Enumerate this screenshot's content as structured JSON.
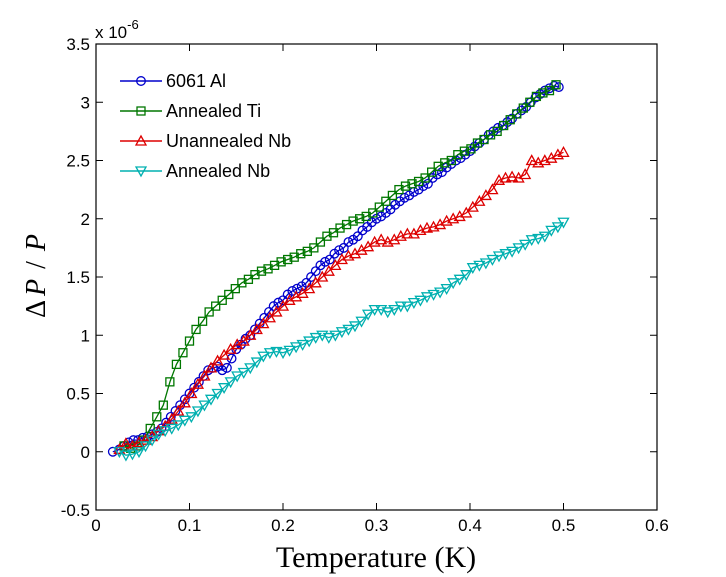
{
  "chart_data": {
    "type": "line",
    "title": "",
    "xlabel": "Temperature (K)",
    "ylabel": "ΔP / P",
    "ylabel_parts": {
      "delta": "Δ",
      "numerator": "P",
      "slash": "/",
      "denominator": "P"
    },
    "y_multiplier": {
      "prefix": "x 10",
      "exponent": "-6"
    },
    "xlim": [
      0,
      0.6
    ],
    "ylim": [
      -0.5,
      3.5
    ],
    "xticks": [
      0,
      0.1,
      0.2,
      0.3,
      0.4,
      0.5,
      0.6
    ],
    "xtick_labels": [
      "0",
      "0.1",
      "0.2",
      "0.3",
      "0.4",
      "0.5",
      "0.6"
    ],
    "yticks": [
      -0.5,
      0,
      0.5,
      1,
      1.5,
      2,
      2.5,
      3,
      3.5
    ],
    "ytick_labels": [
      "-0.5",
      "0",
      "0.5",
      "1",
      "1.5",
      "2",
      "2.5",
      "3",
      "3.5"
    ],
    "grid": false,
    "legend_position": "top-left",
    "series": [
      {
        "name": "6061 Al",
        "color": "#0000cc",
        "marker": "circle",
        "points": [
          [
            0.018,
            0.0
          ],
          [
            0.025,
            0.02
          ],
          [
            0.03,
            0.05
          ],
          [
            0.035,
            0.08
          ],
          [
            0.04,
            0.1
          ],
          [
            0.045,
            0.1
          ],
          [
            0.05,
            0.12
          ],
          [
            0.055,
            0.13
          ],
          [
            0.06,
            0.15
          ],
          [
            0.065,
            0.17
          ],
          [
            0.07,
            0.2
          ],
          [
            0.075,
            0.25
          ],
          [
            0.08,
            0.3
          ],
          [
            0.085,
            0.35
          ],
          [
            0.09,
            0.4
          ],
          [
            0.095,
            0.45
          ],
          [
            0.1,
            0.5
          ],
          [
            0.105,
            0.55
          ],
          [
            0.11,
            0.6
          ],
          [
            0.115,
            0.65
          ],
          [
            0.12,
            0.7
          ],
          [
            0.125,
            0.72
          ],
          [
            0.13,
            0.73
          ],
          [
            0.135,
            0.7
          ],
          [
            0.14,
            0.72
          ],
          [
            0.145,
            0.8
          ],
          [
            0.15,
            0.88
          ],
          [
            0.155,
            0.92
          ],
          [
            0.16,
            0.97
          ],
          [
            0.165,
            1.0
          ],
          [
            0.17,
            1.05
          ],
          [
            0.175,
            1.1
          ],
          [
            0.18,
            1.15
          ],
          [
            0.185,
            1.2
          ],
          [
            0.19,
            1.25
          ],
          [
            0.195,
            1.28
          ],
          [
            0.2,
            1.3
          ],
          [
            0.205,
            1.35
          ],
          [
            0.21,
            1.38
          ],
          [
            0.215,
            1.4
          ],
          [
            0.22,
            1.42
          ],
          [
            0.225,
            1.45
          ],
          [
            0.23,
            1.5
          ],
          [
            0.235,
            1.55
          ],
          [
            0.24,
            1.6
          ],
          [
            0.245,
            1.63
          ],
          [
            0.25,
            1.65
          ],
          [
            0.255,
            1.7
          ],
          [
            0.26,
            1.73
          ],
          [
            0.265,
            1.75
          ],
          [
            0.27,
            1.8
          ],
          [
            0.275,
            1.82
          ],
          [
            0.28,
            1.85
          ],
          [
            0.285,
            1.9
          ],
          [
            0.29,
            1.93
          ],
          [
            0.295,
            1.97
          ],
          [
            0.3,
            2.0
          ],
          [
            0.305,
            2.02
          ],
          [
            0.31,
            2.05
          ],
          [
            0.315,
            2.08
          ],
          [
            0.32,
            2.12
          ],
          [
            0.325,
            2.15
          ],
          [
            0.33,
            2.18
          ],
          [
            0.335,
            2.2
          ],
          [
            0.34,
            2.23
          ],
          [
            0.345,
            2.25
          ],
          [
            0.35,
            2.28
          ],
          [
            0.355,
            2.3
          ],
          [
            0.36,
            2.35
          ],
          [
            0.365,
            2.38
          ],
          [
            0.37,
            2.4
          ],
          [
            0.375,
            2.44
          ],
          [
            0.38,
            2.47
          ],
          [
            0.385,
            2.5
          ],
          [
            0.39,
            2.52
          ],
          [
            0.395,
            2.55
          ],
          [
            0.4,
            2.58
          ],
          [
            0.405,
            2.62
          ],
          [
            0.41,
            2.65
          ],
          [
            0.415,
            2.68
          ],
          [
            0.42,
            2.72
          ],
          [
            0.425,
            2.75
          ],
          [
            0.43,
            2.78
          ],
          [
            0.435,
            2.8
          ],
          [
            0.44,
            2.83
          ],
          [
            0.445,
            2.86
          ],
          [
            0.45,
            2.9
          ],
          [
            0.455,
            2.93
          ],
          [
            0.46,
            2.96
          ],
          [
            0.465,
            3.0
          ],
          [
            0.47,
            3.04
          ],
          [
            0.475,
            3.07
          ],
          [
            0.48,
            3.1
          ],
          [
            0.485,
            3.12
          ],
          [
            0.49,
            3.14
          ],
          [
            0.495,
            3.13
          ]
        ]
      },
      {
        "name": "Annealed Ti",
        "color": "#007700",
        "marker": "square",
        "points": [
          [
            0.03,
            0.05
          ],
          [
            0.037,
            0.03
          ],
          [
            0.044,
            0.05
          ],
          [
            0.051,
            0.1
          ],
          [
            0.058,
            0.2
          ],
          [
            0.065,
            0.3
          ],
          [
            0.072,
            0.4
          ],
          [
            0.079,
            0.6
          ],
          [
            0.086,
            0.75
          ],
          [
            0.093,
            0.85
          ],
          [
            0.1,
            0.95
          ],
          [
            0.107,
            1.05
          ],
          [
            0.114,
            1.12
          ],
          [
            0.121,
            1.2
          ],
          [
            0.128,
            1.25
          ],
          [
            0.135,
            1.3
          ],
          [
            0.142,
            1.35
          ],
          [
            0.149,
            1.4
          ],
          [
            0.156,
            1.45
          ],
          [
            0.163,
            1.48
          ],
          [
            0.17,
            1.52
          ],
          [
            0.177,
            1.55
          ],
          [
            0.184,
            1.57
          ],
          [
            0.191,
            1.6
          ],
          [
            0.198,
            1.63
          ],
          [
            0.205,
            1.65
          ],
          [
            0.212,
            1.67
          ],
          [
            0.219,
            1.7
          ],
          [
            0.226,
            1.72
          ],
          [
            0.233,
            1.75
          ],
          [
            0.24,
            1.8
          ],
          [
            0.247,
            1.85
          ],
          [
            0.254,
            1.88
          ],
          [
            0.261,
            1.92
          ],
          [
            0.268,
            1.95
          ],
          [
            0.275,
            1.98
          ],
          [
            0.282,
            2.0
          ],
          [
            0.289,
            2.02
          ],
          [
            0.296,
            2.05
          ],
          [
            0.303,
            2.1
          ],
          [
            0.31,
            2.15
          ],
          [
            0.317,
            2.2
          ],
          [
            0.324,
            2.25
          ],
          [
            0.331,
            2.28
          ],
          [
            0.338,
            2.3
          ],
          [
            0.345,
            2.32
          ],
          [
            0.352,
            2.35
          ],
          [
            0.359,
            2.4
          ],
          [
            0.366,
            2.45
          ],
          [
            0.373,
            2.48
          ],
          [
            0.38,
            2.5
          ],
          [
            0.387,
            2.55
          ],
          [
            0.394,
            2.58
          ],
          [
            0.401,
            2.6
          ],
          [
            0.408,
            2.65
          ],
          [
            0.415,
            2.68
          ],
          [
            0.422,
            2.72
          ],
          [
            0.429,
            2.75
          ],
          [
            0.436,
            2.8
          ],
          [
            0.443,
            2.85
          ],
          [
            0.45,
            2.9
          ],
          [
            0.457,
            2.95
          ],
          [
            0.464,
            3.0
          ],
          [
            0.471,
            3.05
          ],
          [
            0.478,
            3.08
          ],
          [
            0.485,
            3.1
          ],
          [
            0.492,
            3.15
          ]
        ]
      },
      {
        "name": "Unannealed Nb",
        "color": "#dd0000",
        "marker": "triangle-up",
        "points": [
          [
            0.025,
            0.02
          ],
          [
            0.032,
            0.07
          ],
          [
            0.039,
            0.05
          ],
          [
            0.046,
            0.08
          ],
          [
            0.053,
            0.1
          ],
          [
            0.06,
            0.13
          ],
          [
            0.067,
            0.18
          ],
          [
            0.074,
            0.22
          ],
          [
            0.081,
            0.28
          ],
          [
            0.088,
            0.35
          ],
          [
            0.095,
            0.42
          ],
          [
            0.102,
            0.5
          ],
          [
            0.109,
            0.58
          ],
          [
            0.116,
            0.65
          ],
          [
            0.123,
            0.72
          ],
          [
            0.13,
            0.78
          ],
          [
            0.137,
            0.83
          ],
          [
            0.144,
            0.88
          ],
          [
            0.151,
            0.92
          ],
          [
            0.158,
            0.95
          ],
          [
            0.165,
            1.0
          ],
          [
            0.172,
            1.05
          ],
          [
            0.179,
            1.1
          ],
          [
            0.186,
            1.15
          ],
          [
            0.193,
            1.2
          ],
          [
            0.2,
            1.25
          ],
          [
            0.207,
            1.3
          ],
          [
            0.214,
            1.33
          ],
          [
            0.221,
            1.36
          ],
          [
            0.228,
            1.4
          ],
          [
            0.235,
            1.45
          ],
          [
            0.242,
            1.5
          ],
          [
            0.249,
            1.55
          ],
          [
            0.256,
            1.6
          ],
          [
            0.263,
            1.65
          ],
          [
            0.27,
            1.68
          ],
          [
            0.277,
            1.7
          ],
          [
            0.284,
            1.73
          ],
          [
            0.291,
            1.76
          ],
          [
            0.298,
            1.8
          ],
          [
            0.305,
            1.82
          ],
          [
            0.312,
            1.8
          ],
          [
            0.319,
            1.82
          ],
          [
            0.326,
            1.85
          ],
          [
            0.333,
            1.87
          ],
          [
            0.34,
            1.87
          ],
          [
            0.347,
            1.9
          ],
          [
            0.354,
            1.92
          ],
          [
            0.361,
            1.93
          ],
          [
            0.368,
            1.95
          ],
          [
            0.375,
            1.98
          ],
          [
            0.382,
            2.0
          ],
          [
            0.389,
            2.02
          ],
          [
            0.396,
            2.05
          ],
          [
            0.403,
            2.1
          ],
          [
            0.41,
            2.15
          ],
          [
            0.417,
            2.2
          ],
          [
            0.424,
            2.25
          ],
          [
            0.431,
            2.33
          ],
          [
            0.438,
            2.35
          ],
          [
            0.445,
            2.36
          ],
          [
            0.452,
            2.35
          ],
          [
            0.459,
            2.38
          ],
          [
            0.466,
            2.5
          ],
          [
            0.473,
            2.48
          ],
          [
            0.48,
            2.5
          ],
          [
            0.487,
            2.52
          ],
          [
            0.494,
            2.55
          ],
          [
            0.5,
            2.57
          ]
        ]
      },
      {
        "name": "Annealed Nb",
        "color": "#00b0b0",
        "marker": "triangle-down",
        "points": [
          [
            0.025,
            0.0
          ],
          [
            0.032,
            -0.03
          ],
          [
            0.039,
            -0.02
          ],
          [
            0.046,
            0.0
          ],
          [
            0.053,
            0.05
          ],
          [
            0.06,
            0.1
          ],
          [
            0.067,
            0.15
          ],
          [
            0.074,
            0.18
          ],
          [
            0.081,
            0.2
          ],
          [
            0.088,
            0.23
          ],
          [
            0.095,
            0.27
          ],
          [
            0.102,
            0.3
          ],
          [
            0.109,
            0.35
          ],
          [
            0.116,
            0.4
          ],
          [
            0.123,
            0.45
          ],
          [
            0.13,
            0.5
          ],
          [
            0.137,
            0.55
          ],
          [
            0.144,
            0.6
          ],
          [
            0.151,
            0.65
          ],
          [
            0.158,
            0.68
          ],
          [
            0.165,
            0.72
          ],
          [
            0.172,
            0.77
          ],
          [
            0.179,
            0.82
          ],
          [
            0.186,
            0.85
          ],
          [
            0.193,
            0.86
          ],
          [
            0.2,
            0.85
          ],
          [
            0.207,
            0.87
          ],
          [
            0.214,
            0.9
          ],
          [
            0.221,
            0.92
          ],
          [
            0.228,
            0.95
          ],
          [
            0.235,
            0.98
          ],
          [
            0.242,
            1.0
          ],
          [
            0.249,
            0.98
          ],
          [
            0.256,
            1.0
          ],
          [
            0.263,
            1.03
          ],
          [
            0.27,
            1.05
          ],
          [
            0.277,
            1.08
          ],
          [
            0.284,
            1.12
          ],
          [
            0.291,
            1.18
          ],
          [
            0.298,
            1.22
          ],
          [
            0.305,
            1.22
          ],
          [
            0.312,
            1.2
          ],
          [
            0.319,
            1.22
          ],
          [
            0.326,
            1.25
          ],
          [
            0.333,
            1.25
          ],
          [
            0.34,
            1.28
          ],
          [
            0.347,
            1.3
          ],
          [
            0.354,
            1.33
          ],
          [
            0.361,
            1.35
          ],
          [
            0.368,
            1.37
          ],
          [
            0.375,
            1.4
          ],
          [
            0.382,
            1.45
          ],
          [
            0.389,
            1.48
          ],
          [
            0.396,
            1.52
          ],
          [
            0.403,
            1.58
          ],
          [
            0.41,
            1.6
          ],
          [
            0.417,
            1.62
          ],
          [
            0.424,
            1.65
          ],
          [
            0.431,
            1.68
          ],
          [
            0.438,
            1.7
          ],
          [
            0.445,
            1.72
          ],
          [
            0.452,
            1.75
          ],
          [
            0.459,
            1.78
          ],
          [
            0.466,
            1.82
          ],
          [
            0.473,
            1.83
          ],
          [
            0.48,
            1.85
          ],
          [
            0.487,
            1.9
          ],
          [
            0.494,
            1.93
          ],
          [
            0.5,
            1.97
          ]
        ]
      }
    ]
  }
}
